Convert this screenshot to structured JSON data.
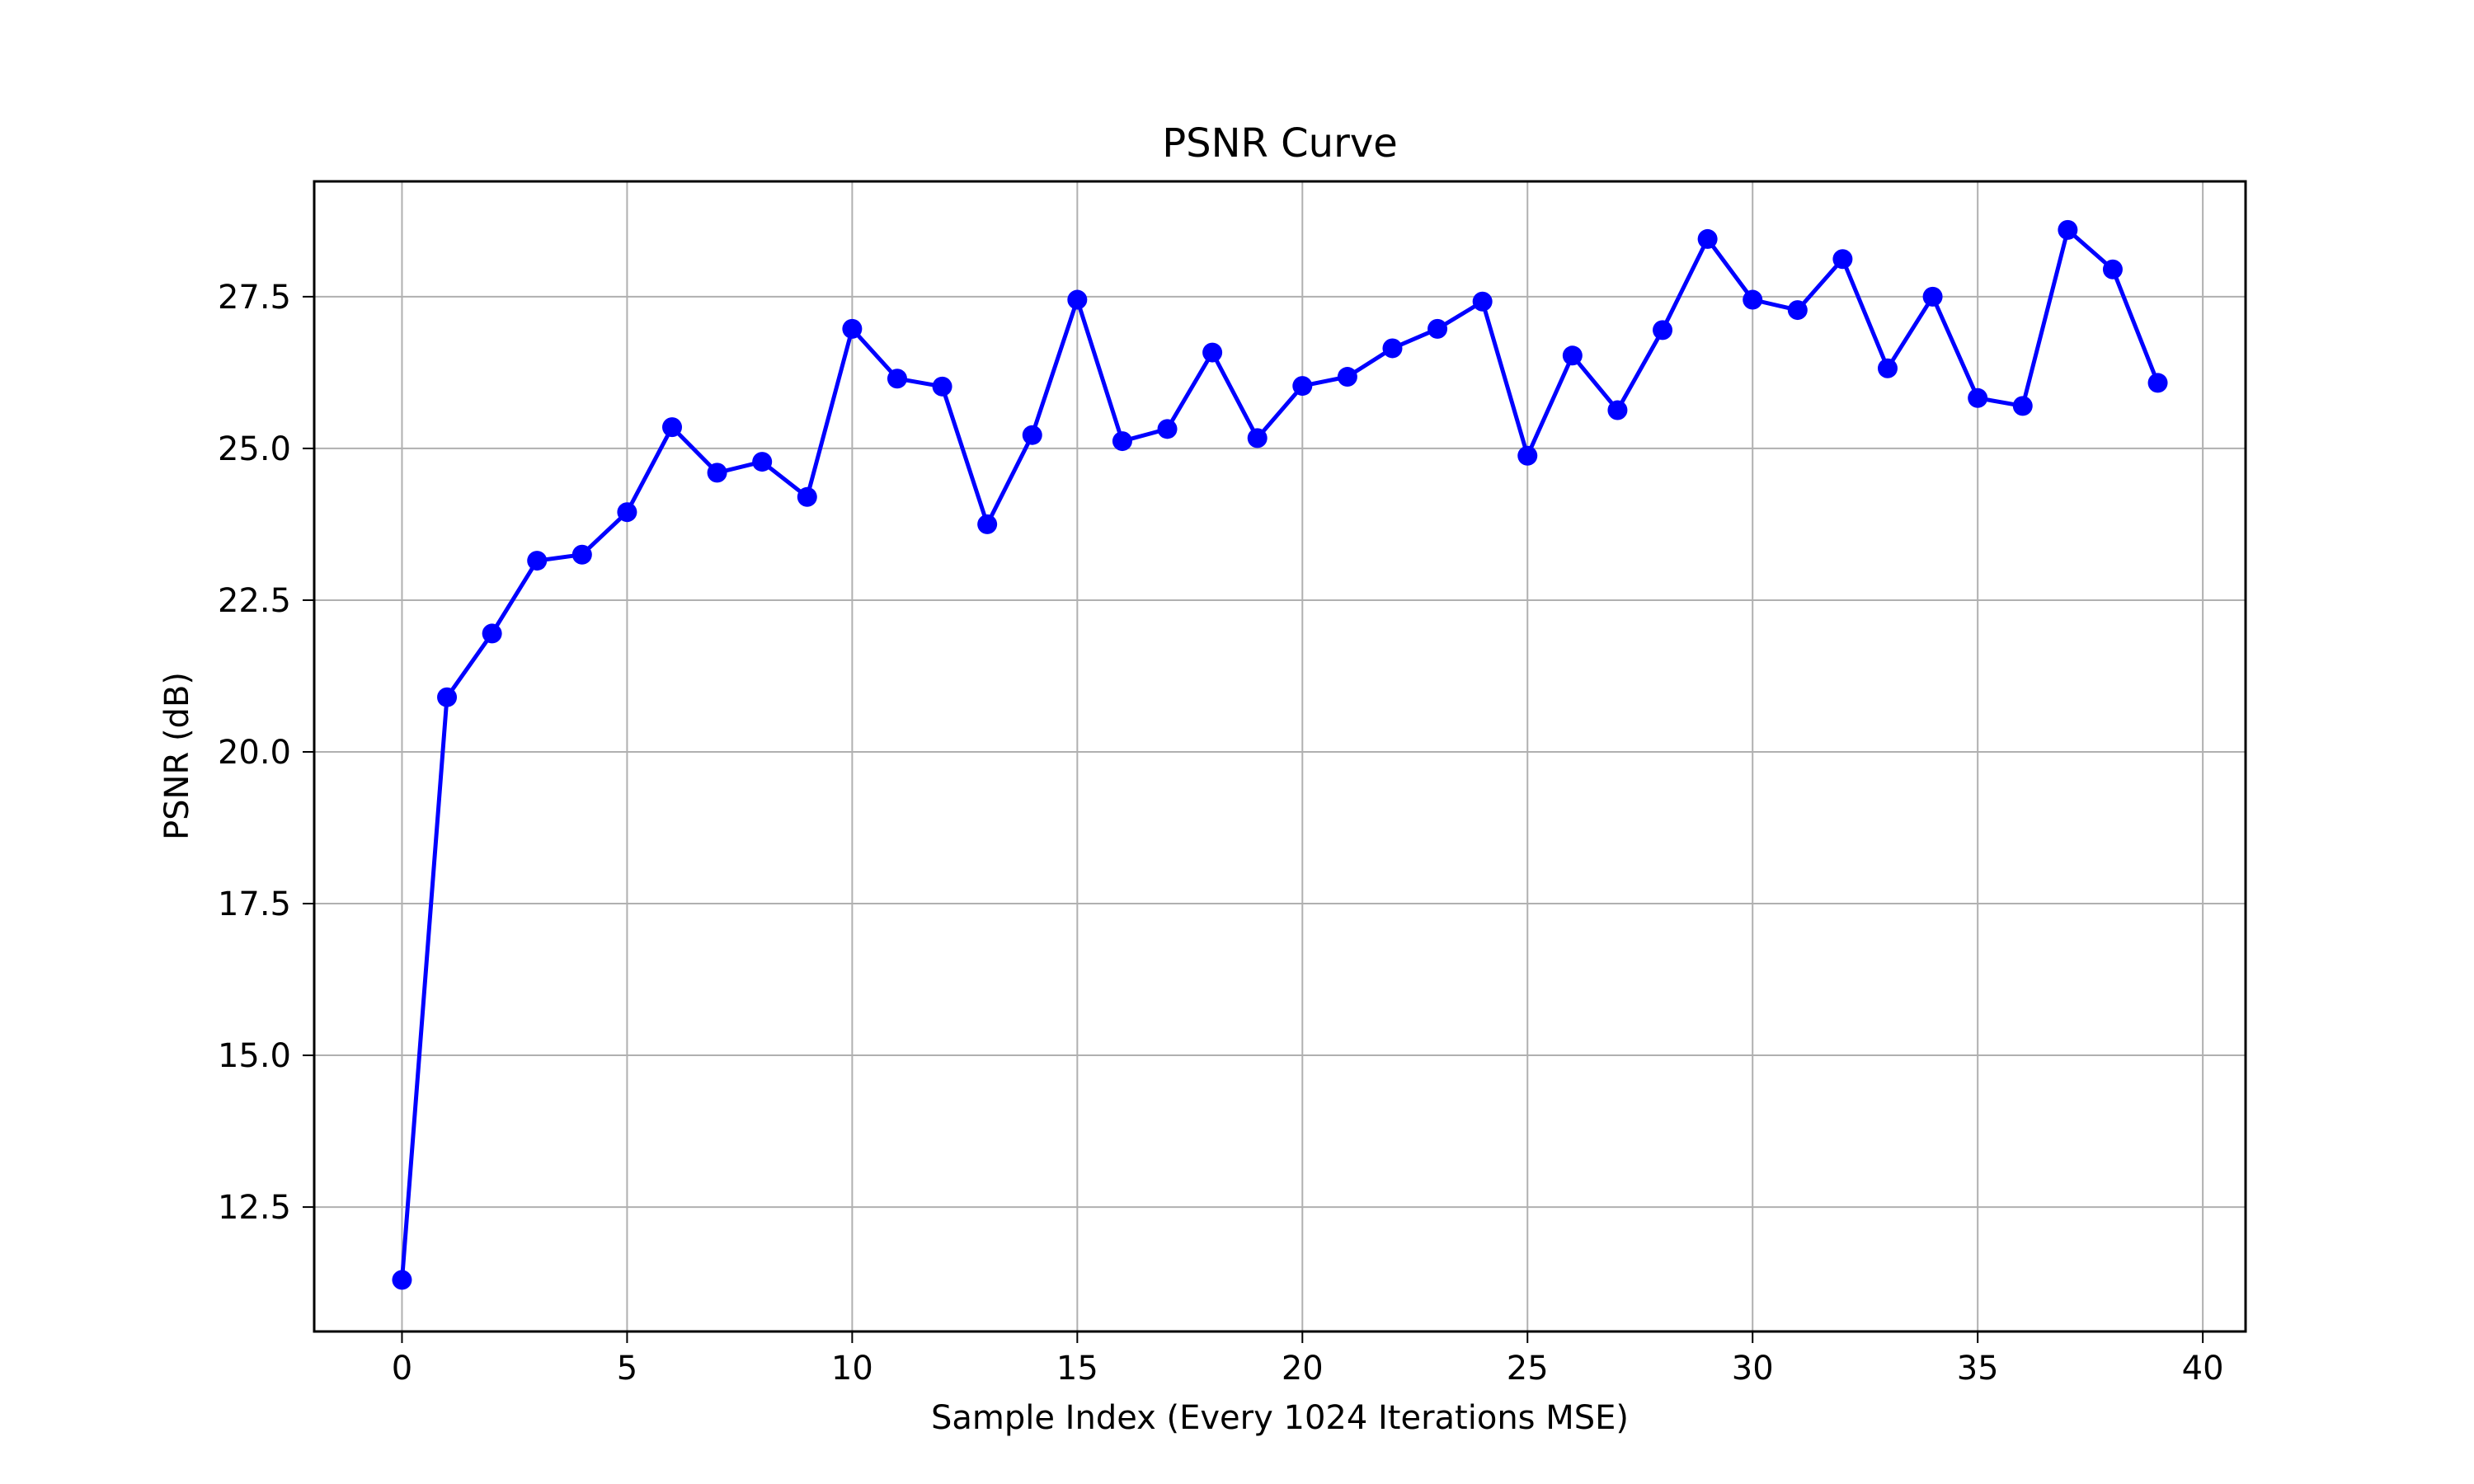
{
  "chart_data": {
    "type": "line",
    "title": "PSNR Curve",
    "xlabel": "Sample Index (Every 1024 Iterations MSE)",
    "ylabel": "PSNR (dB)",
    "xlim": [
      -1.95,
      40.95
    ],
    "ylim": [
      10.45,
      29.4
    ],
    "xticks": [
      0,
      5,
      10,
      15,
      20,
      25,
      30,
      35,
      40
    ],
    "xtick_labels": [
      "0",
      "5",
      "10",
      "15",
      "20",
      "25",
      "30",
      "35",
      "40"
    ],
    "yticks": [
      12.5,
      15.0,
      17.5,
      20.0,
      22.5,
      25.0,
      27.5
    ],
    "ytick_labels": [
      "12.5",
      "15.0",
      "17.5",
      "20.0",
      "22.5",
      "25.0",
      "27.5"
    ],
    "grid": true,
    "series": [
      {
        "color": "#0000ff",
        "marker": "circle",
        "x": [
          0,
          1,
          2,
          3,
          4,
          5,
          6,
          7,
          8,
          9,
          10,
          11,
          12,
          13,
          14,
          15,
          16,
          17,
          18,
          19,
          20,
          21,
          22,
          23,
          24,
          25,
          26,
          27,
          28,
          29,
          30,
          31,
          32,
          33,
          34,
          35,
          36,
          37,
          38,
          39
        ],
        "y": [
          11.3,
          20.9,
          21.95,
          23.15,
          23.25,
          23.95,
          25.35,
          24.6,
          24.78,
          24.2,
          26.97,
          26.15,
          26.02,
          23.75,
          25.22,
          27.45,
          25.12,
          25.32,
          26.58,
          25.17,
          26.03,
          26.18,
          26.65,
          26.97,
          27.42,
          24.88,
          26.53,
          25.63,
          26.95,
          28.45,
          27.45,
          27.28,
          28.12,
          26.32,
          27.5,
          25.83,
          25.7,
          28.6,
          27.95,
          26.08
        ]
      }
    ]
  }
}
